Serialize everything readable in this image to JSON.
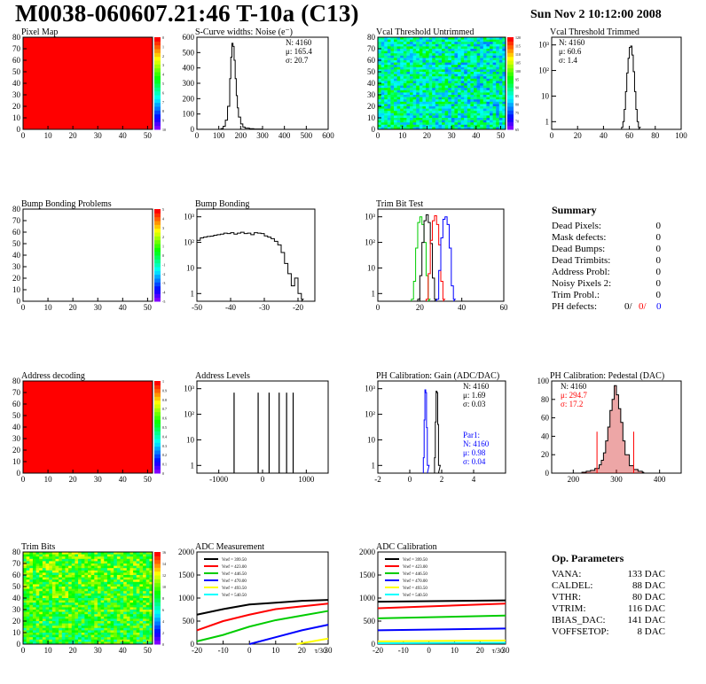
{
  "header": {
    "title": "M0038-060607.21:46 T-10a (C13)",
    "date": "Sun Nov  2 10:12:00 2008"
  },
  "colors": {
    "red": "#ff0000",
    "green": "#00cc00",
    "blue": "#0000ff",
    "black": "#000000",
    "pedestal_fill": "#cc0000"
  },
  "chart_data": [
    {
      "id": "pixel-map",
      "type": "heatmap",
      "title": "Pixel Map",
      "xlim": [
        0,
        52
      ],
      "ylim": [
        0,
        80
      ],
      "xticks": [
        "0",
        "10",
        "20",
        "30",
        "40",
        "50"
      ],
      "yticks": [
        "0",
        "10",
        "20",
        "30",
        "40",
        "50",
        "60",
        "70",
        "80"
      ],
      "z_range": [
        0,
        10
      ],
      "z_ticks": [
        "0",
        "1",
        "2",
        "3",
        "4",
        "5",
        "6",
        "7",
        "8",
        "9",
        "10"
      ],
      "fill": "uniform-max"
    },
    {
      "id": "scurve-noise",
      "type": "histogram",
      "title": "S-Curve widths: Noise (e⁻)",
      "xlim": [
        0,
        600
      ],
      "ylim": [
        0,
        600
      ],
      "log_y": false,
      "xticks": [
        "0",
        "100",
        "200",
        "300",
        "400",
        "500",
        "600"
      ],
      "yticks": [
        "0",
        "100",
        "200",
        "300",
        "400",
        "500",
        "600"
      ],
      "stats": [
        "N: 4160",
        "μ: 165.4",
        "σ: 20.7"
      ],
      "x": [
        100,
        110,
        120,
        130,
        140,
        150,
        155,
        160,
        165,
        170,
        175,
        180,
        185,
        190,
        200,
        210,
        220,
        240,
        260,
        300
      ],
      "y": [
        0,
        5,
        20,
        60,
        150,
        330,
        470,
        560,
        540,
        450,
        330,
        220,
        140,
        80,
        35,
        15,
        8,
        4,
        2,
        0
      ]
    },
    {
      "id": "vcal-untrimmed",
      "type": "heatmap",
      "title": "Vcal Threshold Untrimmed",
      "xlim": [
        0,
        52
      ],
      "ylim": [
        0,
        80
      ],
      "xticks": [
        "0",
        "10",
        "20",
        "30",
        "40",
        "50"
      ],
      "yticks": [
        "0",
        "10",
        "20",
        "30",
        "40",
        "50",
        "60",
        "70",
        "80"
      ],
      "z_ticks": [
        "120",
        "115",
        "110",
        "105",
        "100",
        "95",
        "90",
        "85",
        "80",
        "75",
        "70",
        "65"
      ],
      "fill": "noise-blue"
    },
    {
      "id": "vcal-trimmed",
      "type": "histogram",
      "title": "Vcal Threshold Trimmed",
      "xlim": [
        0,
        100
      ],
      "ylim": [
        0.5,
        2000
      ],
      "log_y": true,
      "xticks": [
        "0",
        "20",
        "40",
        "60",
        "80",
        "100"
      ],
      "yticks": [
        "1",
        "10",
        "10²",
        "10³"
      ],
      "stats": [
        "N: 4160",
        "μ: 60.6",
        "σ:  1.4"
      ],
      "x": [
        54,
        55,
        56,
        57,
        58,
        59,
        60,
        61,
        62,
        63,
        64,
        65,
        66,
        67
      ],
      "y": [
        0.6,
        1,
        3,
        15,
        80,
        300,
        800,
        900,
        400,
        90,
        15,
        3,
        1,
        0.6
      ]
    },
    {
      "id": "bump-problems",
      "type": "heatmap",
      "title": "Bump Bonding Problems",
      "xlim": [
        0,
        52
      ],
      "ylim": [
        0,
        80
      ],
      "xticks": [
        "0",
        "10",
        "20",
        "30",
        "40",
        "50"
      ],
      "yticks": [
        "0",
        "10",
        "20",
        "30",
        "40",
        "50",
        "60",
        "70",
        "80"
      ],
      "z_ticks": [
        "5",
        "4",
        "3",
        "2",
        "1",
        "0",
        "-1",
        "-2",
        "-3",
        "-4",
        "-5"
      ],
      "fill": "empty"
    },
    {
      "id": "bump-bonding",
      "type": "histogram",
      "title": "Bump Bonding",
      "xlim": [
        -50,
        -15
      ],
      "ylim": [
        0.5,
        2000
      ],
      "log_y": true,
      "xticks": [
        "-50",
        "-40",
        "-30",
        "-20"
      ],
      "yticks": [
        "1",
        "10",
        "10²",
        "10³"
      ],
      "x": [
        -50,
        -49,
        -48,
        -47,
        -46,
        -45,
        -44,
        -43,
        -42,
        -41,
        -40,
        -39,
        -38,
        -37,
        -36,
        -35,
        -34,
        -33,
        -32,
        -31,
        -30,
        -29,
        -28,
        -27,
        -26,
        -25,
        -24,
        -23,
        -22,
        -21,
        -20,
        -19
      ],
      "y": [
        120,
        150,
        160,
        170,
        175,
        190,
        200,
        210,
        230,
        220,
        240,
        210,
        230,
        250,
        220,
        230,
        200,
        240,
        230,
        220,
        180,
        160,
        140,
        110,
        80,
        40,
        15,
        6,
        2,
        4,
        1,
        0.6
      ]
    },
    {
      "id": "trim-bit-test",
      "type": "line",
      "title": "Trim Bit Test",
      "xlim": [
        0,
        60
      ],
      "ylim": [
        0.5,
        2000
      ],
      "log_y": true,
      "xticks": [
        "0",
        "20",
        "40",
        "60"
      ],
      "yticks": [
        "1",
        "10",
        "10²",
        "10³"
      ],
      "series": [
        {
          "color": "#00cc00",
          "x": [
            16,
            17,
            18,
            19,
            20,
            21,
            22,
            23,
            24
          ],
          "y": [
            0.6,
            3,
            60,
            600,
            1000,
            500,
            100,
            5,
            0.6
          ]
        },
        {
          "color": "#000000",
          "x": [
            19,
            20,
            21,
            22,
            23,
            24,
            25,
            26,
            27
          ],
          "y": [
            0.6,
            5,
            100,
            700,
            1200,
            600,
            90,
            4,
            0.6
          ]
        },
        {
          "color": "#ff0000",
          "x": [
            23,
            24,
            25,
            26,
            27,
            28,
            29,
            30,
            31
          ],
          "y": [
            0.6,
            6,
            120,
            700,
            1100,
            500,
            80,
            3,
            0.6
          ]
        },
        {
          "color": "#0000ff",
          "x": [
            28,
            29,
            30,
            31,
            32,
            33,
            34,
            35,
            36
          ],
          "y": [
            0.6,
            8,
            150,
            800,
            1000,
            500,
            60,
            2,
            0.6
          ]
        }
      ]
    },
    {
      "id": "address-decoding",
      "type": "heatmap",
      "title": "Address decoding",
      "xlim": [
        0,
        52
      ],
      "ylim": [
        0,
        80
      ],
      "xticks": [
        "0",
        "10",
        "20",
        "30",
        "40",
        "50"
      ],
      "yticks": [
        "0",
        "10",
        "20",
        "30",
        "40",
        "50",
        "60",
        "70",
        "80"
      ],
      "z_ticks": [
        "1",
        "0.9",
        "0.8",
        "0.7",
        "0.6",
        "0.5",
        "0.4",
        "0.3",
        "0.2",
        "0.1",
        "0"
      ],
      "fill": "uniform-max"
    },
    {
      "id": "address-levels",
      "type": "histogram",
      "title": "Address Levels",
      "xlim": [
        -1500,
        1500
      ],
      "ylim": [
        0.5,
        2000
      ],
      "log_y": true,
      "xticks": [
        "-1000",
        "0",
        "1000"
      ],
      "yticks": [
        "1",
        "10",
        "10²",
        "10³"
      ],
      "x": [
        -650,
        -100,
        150,
        380,
        550,
        700
      ],
      "y": [
        700,
        700,
        700,
        700,
        700,
        700
      ]
    },
    {
      "id": "ph-gain",
      "type": "histogram",
      "title": "PH Calibration: Gain (ADC/DAC)",
      "xlim": [
        -2,
        6
      ],
      "ylim": [
        0.5,
        2000
      ],
      "log_y": true,
      "xticks": [
        "-2",
        "0",
        "2",
        "4"
      ],
      "yticks": [
        "1",
        "10",
        "10²",
        "10³"
      ],
      "stats": [
        "N: 4160",
        "μ: 1.69",
        "σ: 0.03"
      ],
      "stats2": [
        "Par1:",
        "N: 4160",
        "μ: 0.98",
        "σ: 0.04"
      ],
      "series": [
        {
          "color": "#000000",
          "x": [
            1.55,
            1.6,
            1.65,
            1.7,
            1.75,
            1.8
          ],
          "y": [
            2,
            50,
            800,
            700,
            40,
            1
          ]
        },
        {
          "color": "#0000ff",
          "x": [
            0.85,
            0.9,
            0.95,
            1.0,
            1.05,
            1.1
          ],
          "y": [
            2,
            60,
            900,
            700,
            30,
            1
          ]
        }
      ]
    },
    {
      "id": "ph-pedestal",
      "type": "histogram",
      "title": "PH Calibration: Pedestal (DAC)",
      "xlim": [
        150,
        450
      ],
      "ylim": [
        0,
        100
      ],
      "log_y": false,
      "xticks": [
        "200",
        "300",
        "400"
      ],
      "yticks": [
        "0",
        "20",
        "40",
        "60",
        "80",
        "100"
      ],
      "stats": [
        "N: 4160",
        "μ: 294.7",
        "σ: 17.2"
      ],
      "x": [
        220,
        230,
        240,
        250,
        260,
        265,
        270,
        275,
        280,
        285,
        290,
        295,
        300,
        305,
        310,
        315,
        320,
        330,
        340,
        350,
        360
      ],
      "y": [
        1,
        2,
        3,
        5,
        9,
        14,
        22,
        35,
        50,
        68,
        80,
        95,
        85,
        70,
        55,
        35,
        20,
        8,
        4,
        2,
        1
      ]
    },
    {
      "id": "trim-bits",
      "type": "heatmap",
      "title": "Trim Bits",
      "xlim": [
        0,
        52
      ],
      "ylim": [
        0,
        80
      ],
      "xticks": [
        "0",
        "10",
        "20",
        "30",
        "40",
        "50"
      ],
      "yticks": [
        "0",
        "10",
        "20",
        "30",
        "40",
        "50",
        "60",
        "70",
        "80"
      ],
      "z_ticks": [
        "16",
        "14",
        "12",
        "10",
        "8",
        "6",
        "4",
        "2",
        "0"
      ],
      "fill": "noise-green"
    },
    {
      "id": "adc-measurement",
      "type": "line",
      "title": "ADC Measurement",
      "xlim": [
        -20,
        30
      ],
      "ylim": [
        0,
        2000
      ],
      "log_y": false,
      "xticks": [
        "-20",
        "-10",
        "0",
        "10",
        "20",
        "30"
      ],
      "yticks": [
        "0",
        "500",
        "1000",
        "1500",
        "2000"
      ],
      "xlabel_end": "τ/30",
      "legend": [
        "Vref = 399.50",
        "Vref = 423.00",
        "Vref = 446.50",
        "Vref = 470.00",
        "Vref = 493.50",
        "Vref = 540.50"
      ],
      "series": [
        {
          "color": "#000000",
          "x": [
            -20,
            -10,
            0,
            10,
            20,
            30
          ],
          "y": [
            640,
            760,
            860,
            900,
            940,
            960
          ]
        },
        {
          "color": "#ff0000",
          "x": [
            -20,
            -10,
            0,
            10,
            20,
            30
          ],
          "y": [
            300,
            500,
            640,
            760,
            820,
            880
          ]
        },
        {
          "color": "#00cc00",
          "x": [
            -20,
            -10,
            0,
            10,
            20,
            30
          ],
          "y": [
            60,
            200,
            380,
            520,
            620,
            720
          ]
        },
        {
          "color": "#0000ff",
          "x": [
            0,
            10,
            20,
            30
          ],
          "y": [
            0,
            150,
            300,
            420
          ]
        },
        {
          "color": "#ffff00",
          "x": [
            18,
            24,
            30
          ],
          "y": [
            0,
            60,
            120
          ]
        },
        {
          "color": "#00ffff",
          "x": [],
          "y": []
        }
      ]
    },
    {
      "id": "adc-calibration",
      "type": "line",
      "title": "ADC Calibration",
      "xlim": [
        -20,
        30
      ],
      "ylim": [
        0,
        2000
      ],
      "log_y": false,
      "xticks": [
        "-20",
        "-10",
        "0",
        "10",
        "20",
        "30"
      ],
      "yticks": [
        "0",
        "500",
        "1000",
        "1500",
        "2000"
      ],
      "xlabel_end": "τ/30",
      "legend": [
        "Vref = 399.50",
        "Vref = 423.00",
        "Vref = 446.50",
        "Vref = 470.00",
        "Vref = 493.50",
        "Vref = 540.50"
      ],
      "series": [
        {
          "color": "#000000",
          "x": [
            -20,
            30
          ],
          "y": [
            920,
            950
          ]
        },
        {
          "color": "#ff0000",
          "x": [
            -20,
            30
          ],
          "y": [
            780,
            880
          ]
        },
        {
          "color": "#00cc00",
          "x": [
            -20,
            30
          ],
          "y": [
            560,
            620
          ]
        },
        {
          "color": "#0000ff",
          "x": [
            -20,
            30
          ],
          "y": [
            300,
            340
          ]
        },
        {
          "color": "#ffff00",
          "x": [
            -20,
            30
          ],
          "y": [
            60,
            80
          ]
        },
        {
          "color": "#00ffff",
          "x": [
            -20,
            30
          ],
          "y": [
            20,
            30
          ]
        }
      ]
    }
  ],
  "summary": {
    "title": "Summary",
    "rows": [
      {
        "label": "Dead Pixels:",
        "value": "0"
      },
      {
        "label": "Mask defects:",
        "value": "0"
      },
      {
        "label": "Dead Bumps:",
        "value": "0"
      },
      {
        "label": "Dead Trimbits:",
        "value": "0"
      },
      {
        "label": "Address Probl:",
        "value": "0"
      },
      {
        "label": "Noisy Pixels 2:",
        "value": "0"
      },
      {
        "label": "Trim Probl.:",
        "value": "0"
      }
    ],
    "ph_label": "PH defects:",
    "ph_values": [
      "0/",
      "0/",
      "0"
    ]
  },
  "op_params": {
    "title": "Op. Parameters",
    "rows": [
      {
        "label": "VANA:",
        "value": "133 DAC"
      },
      {
        "label": "CALDEL:",
        "value": "88 DAC"
      },
      {
        "label": "VTHR:",
        "value": "80 DAC"
      },
      {
        "label": "VTRIM:",
        "value": "116 DAC"
      },
      {
        "label": "IBIAS_DAC:",
        "value": "141 DAC"
      },
      {
        "label": "VOFFSETOP:",
        "value": "8 DAC"
      }
    ]
  }
}
